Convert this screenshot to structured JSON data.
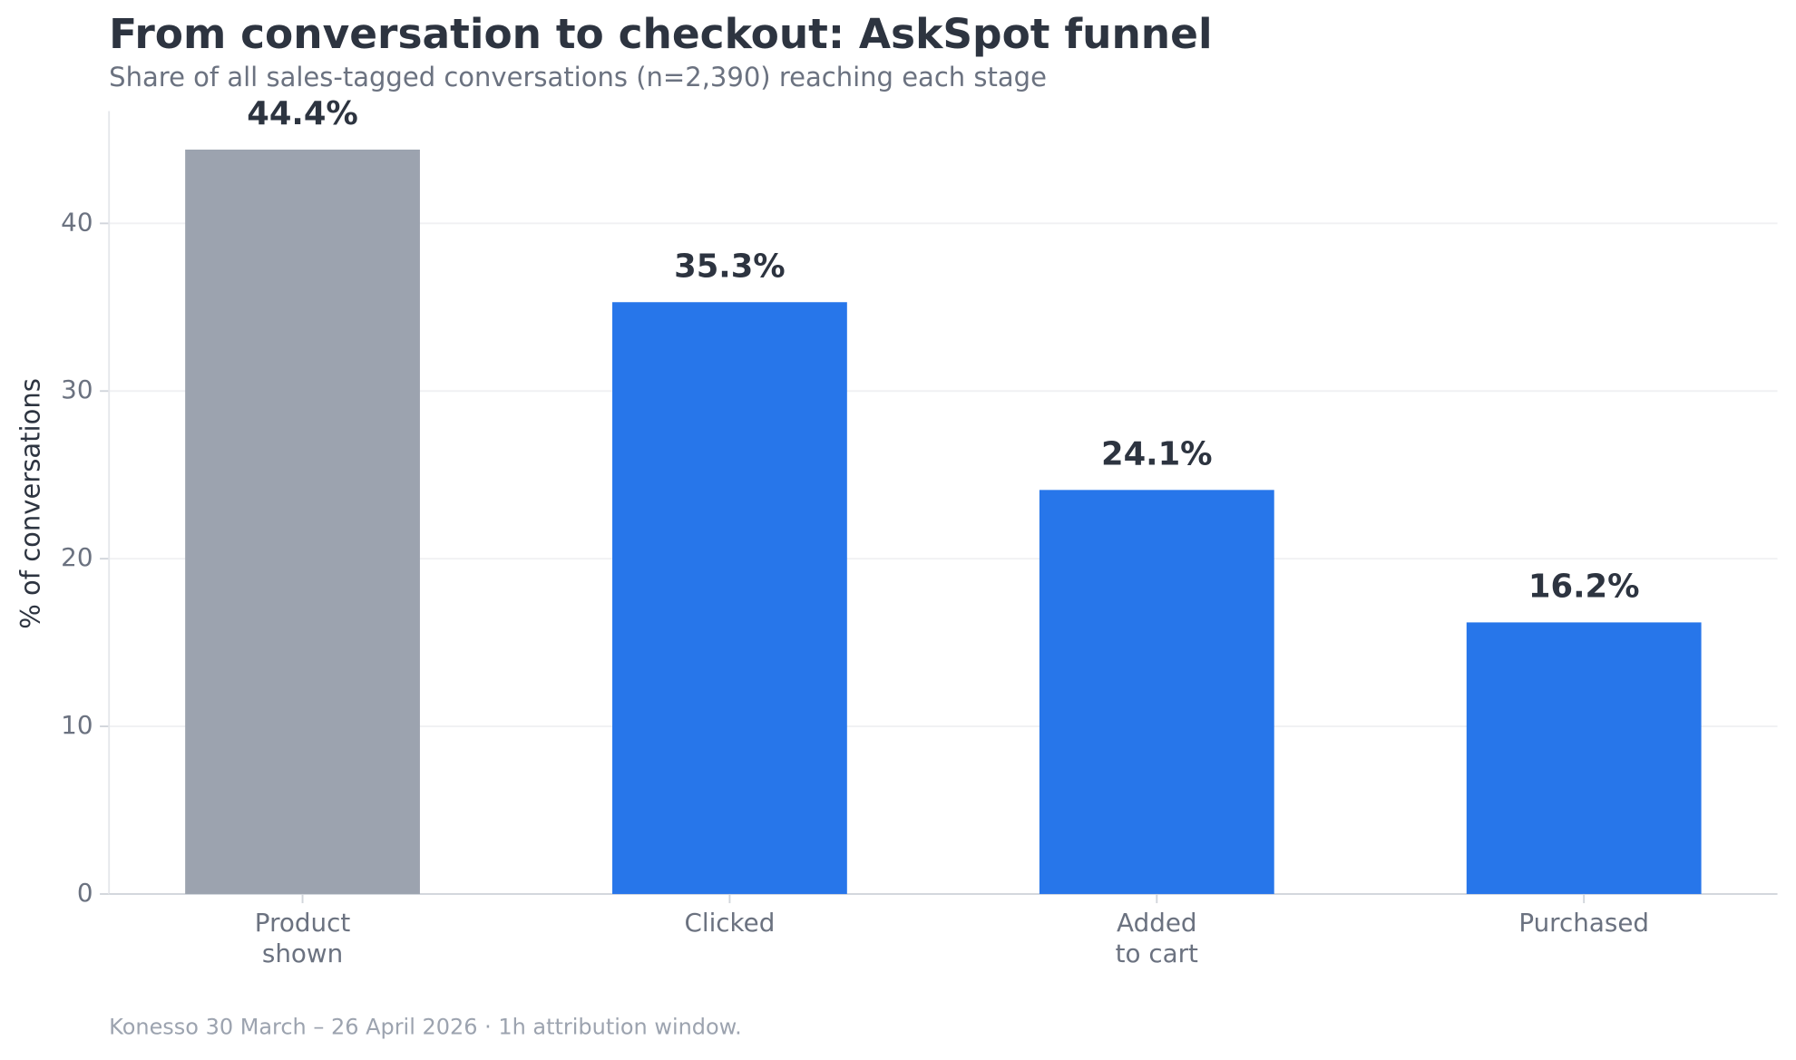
{
  "chart_data": {
    "type": "bar",
    "title": "From conversation to checkout: AskSpot funnel",
    "subtitle": "Share of all sales-tagged conversations (n=2,390) reaching each stage",
    "y_label": "% of conversations",
    "footnote": "Konesso 30 March – 26 April 2026 · 1h attribution window.",
    "categories": [
      "Product\nshown",
      "Clicked",
      "Added\nto cart",
      "Purchased"
    ],
    "values": [
      44.4,
      35.3,
      24.1,
      16.2
    ],
    "value_labels": [
      "44.4%",
      "35.3%",
      "24.1%",
      "16.2%"
    ],
    "colors": [
      "#9ca3af",
      "#2776ea",
      "#2776ea",
      "#2776ea"
    ],
    "ylim": [
      0,
      46.7
    ],
    "yticks": [
      0,
      10,
      20,
      30,
      40
    ],
    "grid": true
  }
}
